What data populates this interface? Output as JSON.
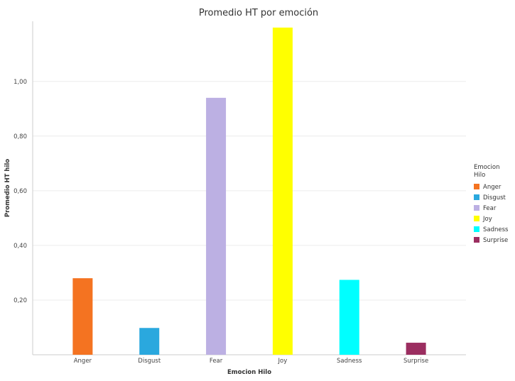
{
  "chart_data": {
    "type": "bar",
    "title": "Promedio HT por emoción",
    "xlabel": "Emocion Hilo",
    "ylabel": "Promedio HT hilo",
    "categories": [
      "Anger",
      "Disgust",
      "Fear",
      "Joy",
      "Sadness",
      "Surprise"
    ],
    "values": [
      0.28,
      0.098,
      0.94,
      1.197,
      0.274,
      0.044
    ],
    "colors": [
      "#f47321",
      "#2aa8de",
      "#bcb0e3",
      "#ffff00",
      "#00ffff",
      "#9b2e60"
    ],
    "yticks": [
      0.2,
      0.4,
      0.6,
      0.8,
      1.0
    ],
    "ytick_labels": [
      "0,20",
      "0,40",
      "0,60",
      "0,80",
      "1,00"
    ],
    "ylim": [
      0,
      1.22
    ],
    "grid": true,
    "legend": {
      "title_lines": [
        "Emocion",
        "Hilo"
      ],
      "placement": "right",
      "entries": [
        "Anger",
        "Disgust",
        "Fear",
        "Joy",
        "Sadness",
        "Surprise"
      ]
    }
  }
}
